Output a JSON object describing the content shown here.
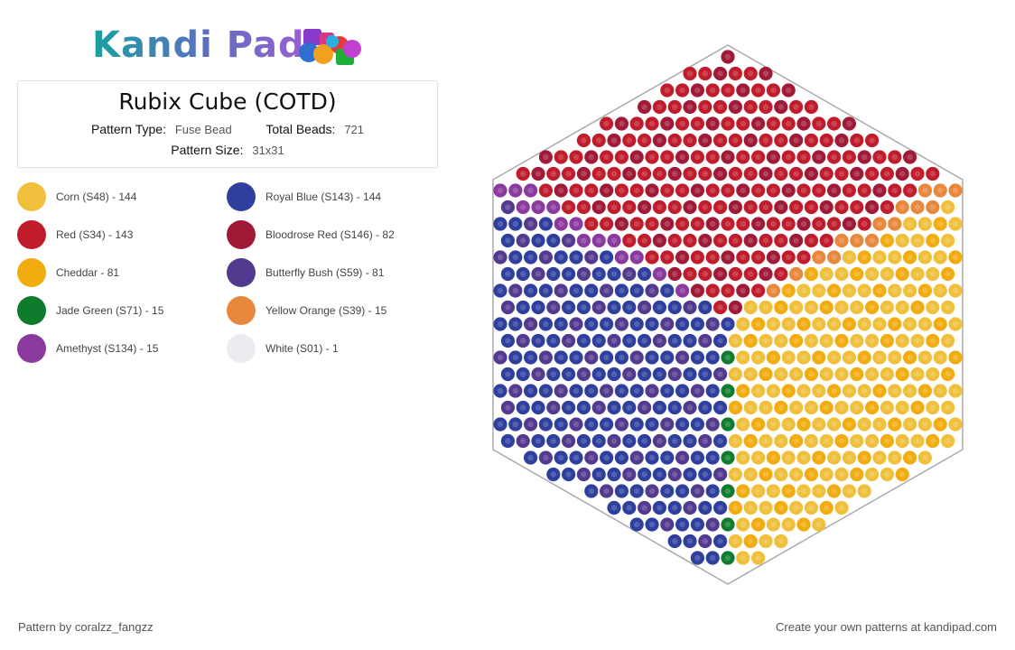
{
  "brand": {
    "logo_text": "Kandi Pad",
    "logo_icon": "colorful-beads-icon"
  },
  "pattern": {
    "title": "Rubix Cube (COTD)",
    "type_label": "Pattern Type:",
    "type_value": "Fuse Bead",
    "beads_label": "Total Beads:",
    "beads_value": "721",
    "size_label": "Pattern Size:",
    "size_value": "31x31"
  },
  "legend": [
    {
      "label": "Corn (S48) - 144",
      "color": "#f0c03c"
    },
    {
      "label": "Royal Blue (S143) - 144",
      "color": "#2e3f9e"
    },
    {
      "label": "Red (S34) - 143",
      "color": "#c01c2c"
    },
    {
      "label": "Bloodrose Red (S146) - 82",
      "color": "#a01a38"
    },
    {
      "label": "Cheddar - 81",
      "color": "#f2ac10"
    },
    {
      "label": "Butterfly Bush (S59) - 81",
      "color": "#523a8e"
    },
    {
      "label": "Jade Green (S71) - 15",
      "color": "#0e7c2c"
    },
    {
      "label": "Yellow Orange (S39) - 15",
      "color": "#e8883c"
    },
    {
      "label": "Amethyst (S134) - 15",
      "color": "#8a3a9e"
    },
    {
      "label": "White (S01) - 1",
      "color": "#ececf0"
    }
  ],
  "footer": {
    "author": "Pattern by coralzz_fangzz",
    "cta": "Create your own patterns at kandipad.com"
  }
}
